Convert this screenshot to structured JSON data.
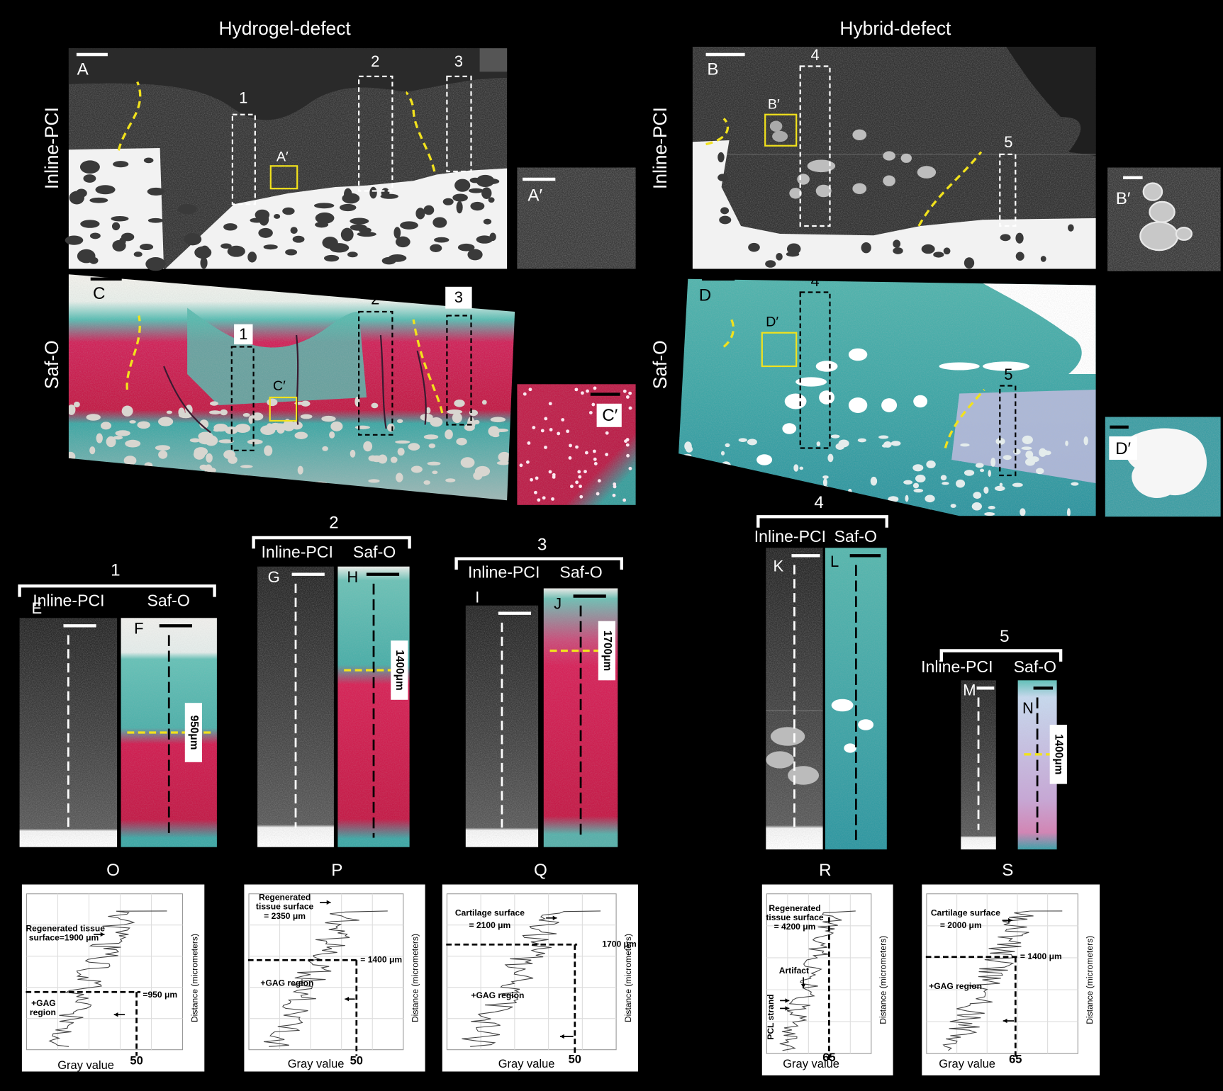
{
  "headers": [
    "Hydrogel-defect",
    "Hybrid-defect"
  ],
  "row_labels": {
    "left": [
      "Inline-PCI",
      "Saf-O"
    ],
    "right": [
      "Inline-PCI",
      "Saf-O"
    ]
  },
  "panel_labels": [
    "A",
    "A′",
    "B",
    "B′",
    "C",
    "C′",
    "D",
    "D′"
  ],
  "region_labels_top": [
    "1",
    "2",
    "3",
    "A′",
    "4",
    "B′",
    "5"
  ],
  "region_labels_bottom": [
    "1",
    "2",
    "3",
    "C′",
    "4",
    "D′",
    "5"
  ],
  "strip_groups": [
    {
      "number": "1",
      "modalities": [
        "Inline-PCI",
        "Saf-O"
      ],
      "panels": [
        "E",
        "F"
      ],
      "measurement": "950μm"
    },
    {
      "number": "2",
      "modalities": [
        "Inline-PCI",
        "Saf-O"
      ],
      "panels": [
        "G",
        "H"
      ],
      "measurement": "1400μm"
    },
    {
      "number": "3",
      "modalities": [
        "Inline-PCI",
        "Saf-O"
      ],
      "panels": [
        "I",
        "J"
      ],
      "measurement": "1700μm"
    },
    {
      "number": "4",
      "modalities": [
        "Inline-PCI",
        "Saf-O"
      ],
      "panels": [
        "K",
        "L"
      ]
    },
    {
      "number": "5",
      "modalities": [
        "Inline-PCI",
        "Saf-O"
      ],
      "panels": [
        "M",
        "N"
      ],
      "measurement": "1400μm"
    }
  ],
  "plots": [
    {
      "title": "O",
      "annotations": [
        "Regenerated tissue",
        "surface=1900 μm",
        "+GAG",
        "region",
        "=950 μm"
      ],
      "x_tick": 50,
      "x_label": "Gray value",
      "y_label": "Distance (micrometers)"
    },
    {
      "title": "P",
      "annotations": [
        "Regenerated",
        "tissue surface",
        "= 2350 μm",
        "= 1400 μm",
        "+GAG region"
      ],
      "x_tick": 50,
      "x_label": "Gray value",
      "y_label": "Distance (micrometers)"
    },
    {
      "title": "Q",
      "annotations": [
        "Cartilage surface",
        "= 2100 μm",
        "1700 μm",
        "+GAG region"
      ],
      "x_tick": 50,
      "x_label": "Gray value",
      "y_label": "Distance (micrometers)"
    },
    {
      "title": "R",
      "annotations": [
        "Regenerated",
        "tissue surface",
        "= 4200 μm",
        "Artifact",
        "PCL strand"
      ],
      "x_tick": 65,
      "x_label": "Gray value",
      "y_label": "Distance (micrometers)"
    },
    {
      "title": "S",
      "annotations": [
        "Cartilage surface",
        "= 2000 μm",
        "= 1400 μm",
        "+GAG region"
      ],
      "x_tick": 65,
      "x_label": "Gray value",
      "y_label": "Distance (micrometers)"
    }
  ]
}
